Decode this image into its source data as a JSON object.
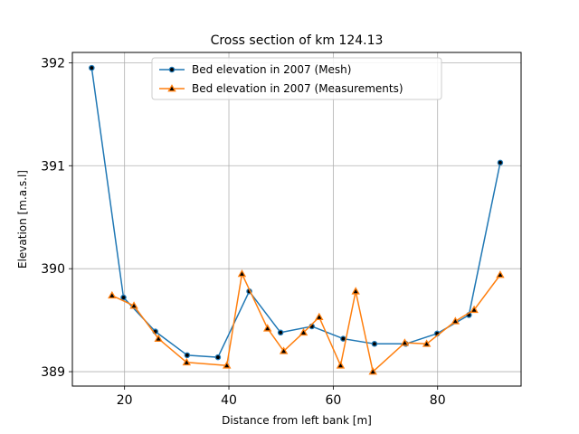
{
  "chart_data": {
    "type": "line",
    "title": "Cross section of km 124.13",
    "xlabel": "Distance from left bank [m]",
    "ylabel": "Elevation [m.a.s.l]",
    "xlim": [
      10,
      96
    ],
    "ylim": [
      388.86,
      392.1
    ],
    "xticks": [
      20,
      40,
      60,
      80
    ],
    "yticks": [
      389,
      390,
      391,
      392
    ],
    "grid": true,
    "legend_position": "top-center",
    "series": [
      {
        "name": "Bed elevation in 2007 (Mesh)",
        "color": "#1f77b4",
        "marker": "circle",
        "x": [
          13.7,
          19.8,
          25.9,
          32.0,
          37.9,
          43.9,
          49.9,
          55.9,
          61.9,
          67.9,
          73.9,
          79.9,
          86.0,
          92.0
        ],
        "y": [
          391.95,
          389.72,
          389.39,
          389.16,
          389.14,
          389.78,
          389.38,
          389.44,
          389.32,
          389.27,
          389.27,
          389.37,
          389.55,
          391.03
        ]
      },
      {
        "name": "Bed elevation in 2007 (Measurements)",
        "color": "#ff7f0e",
        "marker": "triangle",
        "x": [
          17.6,
          21.8,
          26.5,
          31.9,
          39.6,
          42.5,
          47.4,
          50.5,
          54.3,
          57.3,
          61.4,
          64.3,
          67.6,
          73.7,
          77.9,
          83.4,
          87.0,
          92.0
        ],
        "y": [
          389.74,
          389.64,
          389.32,
          389.09,
          389.06,
          389.95,
          389.42,
          389.2,
          389.38,
          389.53,
          389.06,
          389.78,
          389.0,
          389.28,
          389.27,
          389.49,
          389.6,
          389.94
        ]
      }
    ]
  }
}
